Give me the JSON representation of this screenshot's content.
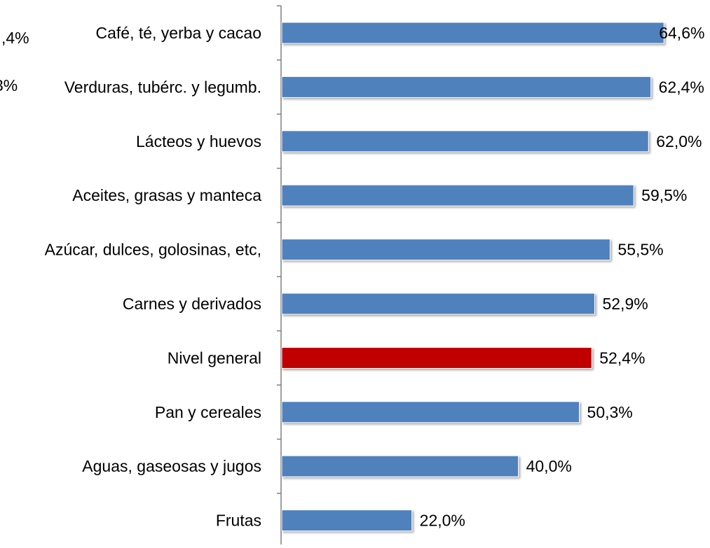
{
  "chart_data": {
    "type": "bar",
    "orientation": "horizontal",
    "title": "",
    "xlabel": "",
    "ylabel": "",
    "xlim": [
      0,
      65
    ],
    "grid": false,
    "legend": "none",
    "categories": [
      "Café, té, yerba y cacao",
      "Verduras, tubérc. y legumb.",
      "Lácteos y huevos",
      "Aceites, grasas y manteca",
      "Azúcar, dulces, golosinas, etc,",
      "Carnes y derivados",
      "Nivel general",
      "Pan y cereales",
      "Aguas, gaseosas y jugos",
      "Frutas"
    ],
    "values": [
      64.6,
      62.4,
      62.0,
      59.5,
      55.5,
      52.9,
      52.4,
      50.3,
      40.0,
      22.0
    ],
    "value_labels": [
      "64,6%",
      "62,4%",
      "62,0%",
      "59,5%",
      "55,5%",
      "52,9%",
      "52,4%",
      "50,3%",
      "40,0%",
      "22,0%"
    ],
    "colors": {
      "default_bar": "#4F81BD",
      "highlight_bar": "#C00000",
      "axis": "#808080",
      "text": "#000000"
    },
    "highlight_category": "Nivel general",
    "clipped_labels": [
      ",4%",
      "3%"
    ]
  }
}
